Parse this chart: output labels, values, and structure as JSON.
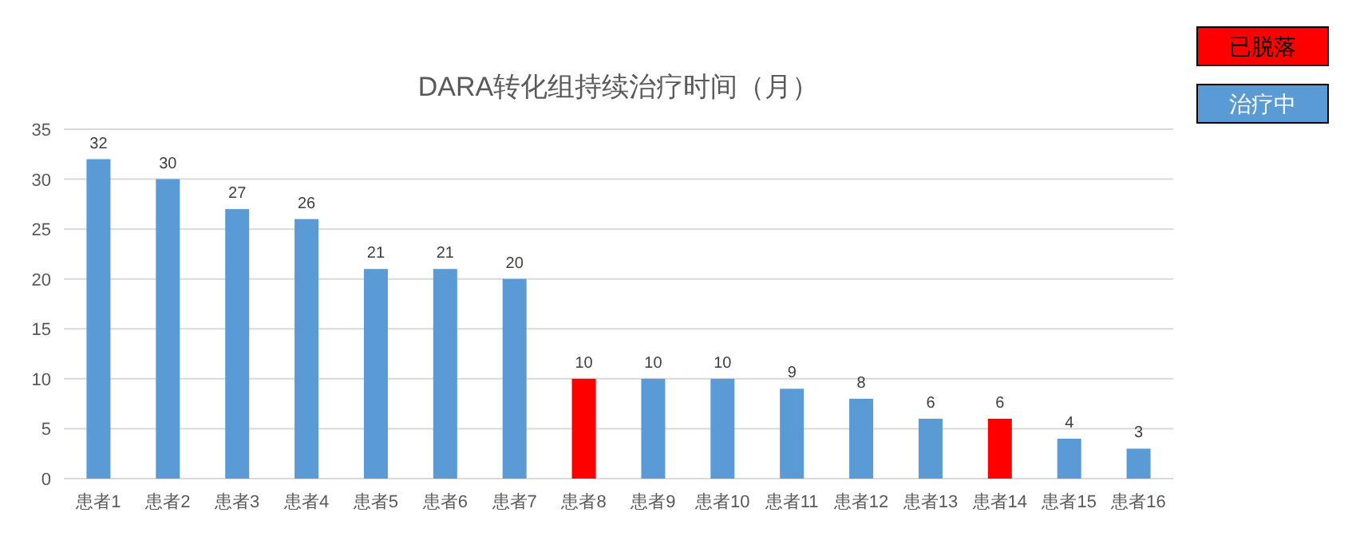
{
  "chart_data": {
    "type": "bar",
    "title": "DARA转化组持续治疗时间（月）",
    "categories": [
      "患者1",
      "患者2",
      "患者3",
      "患者4",
      "患者5",
      "患者6",
      "患者7",
      "患者8",
      "患者9",
      "患者10",
      "患者11",
      "患者12",
      "患者13",
      "患者14",
      "患者15",
      "患者16"
    ],
    "series": [
      {
        "name": "已脱落",
        "color": "#ff0000",
        "values": [
          null,
          null,
          null,
          null,
          null,
          null,
          null,
          10,
          null,
          null,
          null,
          null,
          null,
          6,
          null,
          null
        ]
      },
      {
        "name": "治疗中",
        "color": "#5b9bd5",
        "values": [
          32,
          30,
          27,
          26,
          21,
          21,
          20,
          null,
          10,
          10,
          9,
          8,
          6,
          null,
          4,
          3
        ]
      }
    ],
    "stacked": true,
    "ylim": [
      0,
      35
    ],
    "yticks": [
      0,
      5,
      10,
      15,
      20,
      25,
      30,
      35
    ],
    "grid": "y",
    "data_labels": true,
    "legend": "top right"
  }
}
